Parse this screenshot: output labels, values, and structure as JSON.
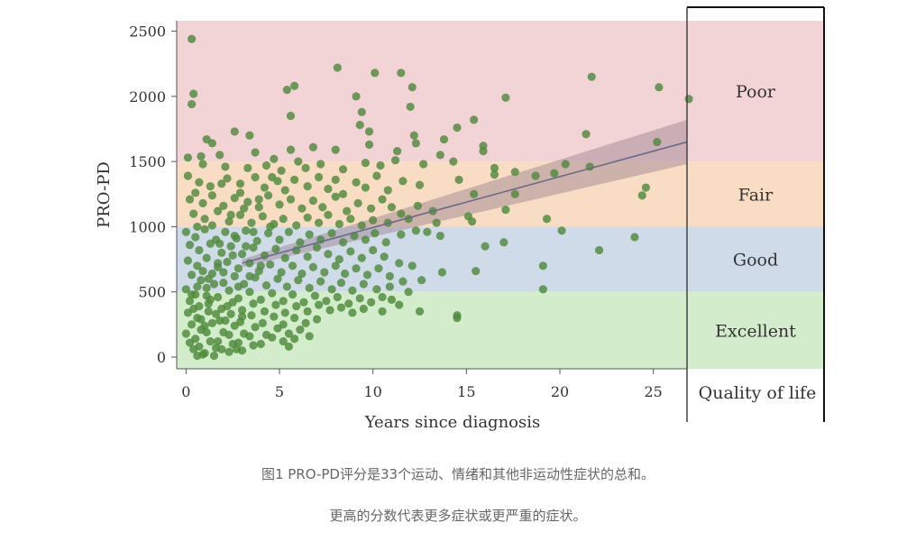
{
  "chart_data": {
    "type": "scatter",
    "title": "",
    "xlabel": "Years since diagnosis",
    "ylabel": "PRO-PD",
    "xlim": [
      -0.5,
      26.8
    ],
    "ylim": [
      -90,
      2580
    ],
    "xticks": [
      0,
      5,
      10,
      15,
      20,
      25
    ],
    "yticks": [
      0,
      500,
      1000,
      1500,
      2000,
      2500
    ],
    "grid": false,
    "bands": [
      {
        "label": "Poor",
        "from": 1500,
        "to": 2580,
        "color": "#f2d3d6"
      },
      {
        "label": "Fair",
        "from": 1000,
        "to": 1500,
        "color": "#f8dcc4"
      },
      {
        "label": "Good",
        "from": 500,
        "to": 1000,
        "color": "#cfdbe9"
      },
      {
        "label": "Excellent",
        "from": -90,
        "to": 500,
        "color": "#d3eccb"
      }
    ],
    "legend_title": "Quality of life",
    "trend_line": {
      "x": [
        3,
        26.8
      ],
      "y": [
        720,
        1650
      ],
      "ci_lower_end": 1480,
      "ci_upper_end": 1820,
      "ci_lower_start": 690,
      "ci_upper_start": 750,
      "color": "#6a6a8a"
    },
    "point_color": "#4f8a3c",
    "points": [
      [
        0.3,
        2440
      ],
      [
        0.4,
        2020
      ],
      [
        0.3,
        1940
      ],
      [
        8.1,
        2220
      ],
      [
        10.1,
        2180
      ],
      [
        11.5,
        2180
      ],
      [
        12.1,
        2070
      ],
      [
        5.4,
        2050
      ],
      [
        5.8,
        2080
      ],
      [
        9.1,
        2000
      ],
      [
        9.4,
        1880
      ],
      [
        12.0,
        1920
      ],
      [
        21.7,
        2150
      ],
      [
        17.1,
        1990
      ],
      [
        25.3,
        2070
      ],
      [
        26.9,
        1980
      ],
      [
        5.6,
        1850
      ],
      [
        9.3,
        1780
      ],
      [
        9.8,
        1730
      ],
      [
        14.5,
        1760
      ],
      [
        15.4,
        1820
      ],
      [
        21.4,
        1710
      ],
      [
        25.2,
        1650
      ],
      [
        1.1,
        1670
      ],
      [
        1.4,
        1640
      ],
      [
        2.6,
        1730
      ],
      [
        3.4,
        1700
      ],
      [
        12.2,
        1700
      ],
      [
        12.3,
        1640
      ],
      [
        13.8,
        1670
      ],
      [
        15.9,
        1620
      ],
      [
        6.8,
        1610
      ],
      [
        8.0,
        1590
      ],
      [
        5.6,
        1590
      ],
      [
        9.8,
        1630
      ],
      [
        0.1,
        1530
      ],
      [
        0.8,
        1540
      ],
      [
        1.8,
        1550
      ],
      [
        3.7,
        1570
      ],
      [
        4.7,
        1520
      ],
      [
        6.0,
        1500
      ],
      [
        11.3,
        1580
      ],
      [
        13.6,
        1550
      ],
      [
        15.9,
        1580
      ],
      [
        20.3,
        1480
      ],
      [
        21.6,
        1460
      ],
      [
        0.9,
        1480
      ],
      [
        2.1,
        1460
      ],
      [
        3.3,
        1450
      ],
      [
        4.3,
        1470
      ],
      [
        5.1,
        1430
      ],
      [
        6.4,
        1450
      ],
      [
        7.2,
        1480
      ],
      [
        8.4,
        1440
      ],
      [
        9.6,
        1490
      ],
      [
        10.4,
        1470
      ],
      [
        11.2,
        1510
      ],
      [
        12.7,
        1480
      ],
      [
        14.3,
        1500
      ],
      [
        16.5,
        1450
      ],
      [
        17.6,
        1420
      ],
      [
        19.7,
        1410
      ],
      [
        0.1,
        1390
      ],
      [
        0.7,
        1340
      ],
      [
        1.3,
        1310
      ],
      [
        2.2,
        1370
      ],
      [
        2.9,
        1330
      ],
      [
        3.7,
        1380
      ],
      [
        4.2,
        1300
      ],
      [
        4.9,
        1350
      ],
      [
        5.3,
        1280
      ],
      [
        5.8,
        1360
      ],
      [
        6.5,
        1310
      ],
      [
        7.1,
        1380
      ],
      [
        7.6,
        1290
      ],
      [
        8.0,
        1360
      ],
      [
        8.4,
        1250
      ],
      [
        9.1,
        1340
      ],
      [
        9.6,
        1300
      ],
      [
        10.2,
        1390
      ],
      [
        10.8,
        1280
      ],
      [
        11.6,
        1350
      ],
      [
        12.5,
        1320
      ],
      [
        14.6,
        1360
      ],
      [
        15.4,
        1250
      ],
      [
        16.5,
        1400
      ],
      [
        17.6,
        1250
      ],
      [
        18.7,
        1390
      ],
      [
        24.6,
        1300
      ],
      [
        24.4,
        1240
      ],
      [
        0.2,
        1210
      ],
      [
        0.9,
        1180
      ],
      [
        1.4,
        1240
      ],
      [
        2.0,
        1160
      ],
      [
        2.6,
        1220
      ],
      [
        3.3,
        1190
      ],
      [
        3.9,
        1150
      ],
      [
        4.4,
        1240
      ],
      [
        5.0,
        1170
      ],
      [
        5.6,
        1210
      ],
      [
        6.2,
        1140
      ],
      [
        6.8,
        1200
      ],
      [
        7.3,
        1150
      ],
      [
        8.0,
        1230
      ],
      [
        8.6,
        1120
      ],
      [
        9.2,
        1180
      ],
      [
        9.9,
        1140
      ],
      [
        10.5,
        1210
      ],
      [
        11.0,
        1150
      ],
      [
        11.5,
        1100
      ],
      [
        12.4,
        1160
      ],
      [
        13.2,
        1120
      ],
      [
        15.1,
        1080
      ],
      [
        17.1,
        1130
      ],
      [
        0.4,
        1100
      ],
      [
        1.0,
        1060
      ],
      [
        1.7,
        1120
      ],
      [
        2.3,
        1040
      ],
      [
        2.9,
        1090
      ],
      [
        3.5,
        1030
      ],
      [
        4.1,
        1080
      ],
      [
        4.7,
        1020
      ],
      [
        5.2,
        1060
      ],
      [
        5.9,
        1010
      ],
      [
        6.5,
        1070
      ],
      [
        7.1,
        1030
      ],
      [
        7.6,
        1090
      ],
      [
        8.2,
        1020
      ],
      [
        8.8,
        1060
      ],
      [
        9.4,
        1010
      ],
      [
        10.0,
        1050
      ],
      [
        10.8,
        1030
      ],
      [
        11.9,
        1060
      ],
      [
        13.4,
        1030
      ],
      [
        15.3,
        1040
      ],
      [
        19.3,
        1060
      ],
      [
        0.0,
        960
      ],
      [
        0.5,
        920
      ],
      [
        1.0,
        980
      ],
      [
        1.6,
        900
      ],
      [
        2.1,
        960
      ],
      [
        2.7,
        910
      ],
      [
        3.2,
        970
      ],
      [
        3.8,
        890
      ],
      [
        4.4,
        950
      ],
      [
        5.0,
        900
      ],
      [
        5.5,
        960
      ],
      [
        6.1,
        880
      ],
      [
        6.6,
        940
      ],
      [
        7.2,
        900
      ],
      [
        7.8,
        950
      ],
      [
        8.4,
        880
      ],
      [
        9.0,
        930
      ],
      [
        9.6,
        900
      ],
      [
        10.1,
        950
      ],
      [
        10.7,
        880
      ],
      [
        11.5,
        940
      ],
      [
        12.3,
        970
      ],
      [
        12.9,
        960
      ],
      [
        13.6,
        930
      ],
      [
        16.0,
        850
      ],
      [
        17.0,
        880
      ],
      [
        20.1,
        970
      ],
      [
        22.1,
        820
      ],
      [
        24.0,
        920
      ],
      [
        0.2,
        860
      ],
      [
        0.7,
        820
      ],
      [
        1.3,
        870
      ],
      [
        1.9,
        800
      ],
      [
        2.4,
        850
      ],
      [
        3.0,
        790
      ],
      [
        3.6,
        840
      ],
      [
        4.2,
        780
      ],
      [
        4.8,
        830
      ],
      [
        5.3,
        760
      ],
      [
        5.9,
        820
      ],
      [
        6.5,
        770
      ],
      [
        7.0,
        840
      ],
      [
        7.6,
        790
      ],
      [
        8.2,
        750
      ],
      [
        8.8,
        810
      ],
      [
        9.4,
        760
      ],
      [
        10.0,
        820
      ],
      [
        10.6,
        770
      ],
      [
        11.4,
        720
      ],
      [
        12.1,
        700
      ],
      [
        0.1,
        740
      ],
      [
        0.6,
        700
      ],
      [
        1.1,
        760
      ],
      [
        1.7,
        690
      ],
      [
        2.2,
        730
      ],
      [
        2.8,
        680
      ],
      [
        3.4,
        720
      ],
      [
        3.9,
        660
      ],
      [
        4.5,
        710
      ],
      [
        5.1,
        650
      ],
      [
        5.7,
        700
      ],
      [
        6.2,
        640
      ],
      [
        6.8,
        690
      ],
      [
        7.4,
        650
      ],
      [
        8.0,
        700
      ],
      [
        8.5,
        640
      ],
      [
        9.1,
        680
      ],
      [
        9.7,
        630
      ],
      [
        10.3,
        680
      ],
      [
        10.9,
        620
      ],
      [
        11.6,
        580
      ],
      [
        13.7,
        650
      ],
      [
        15.5,
        660
      ],
      [
        19.1,
        700
      ],
      [
        0.3,
        630
      ],
      [
        0.8,
        590
      ],
      [
        1.4,
        640
      ],
      [
        2.0,
        570
      ],
      [
        2.6,
        620
      ],
      [
        3.1,
        560
      ],
      [
        3.7,
        610
      ],
      [
        4.3,
        550
      ],
      [
        4.9,
        600
      ],
      [
        5.4,
        540
      ],
      [
        6.0,
        590
      ],
      [
        6.6,
        530
      ],
      [
        7.2,
        580
      ],
      [
        7.8,
        520
      ],
      [
        8.3,
        570
      ],
      [
        8.9,
        510
      ],
      [
        9.5,
        560
      ],
      [
        10.2,
        520
      ],
      [
        10.9,
        540
      ],
      [
        11.9,
        500
      ],
      [
        12.6,
        590
      ],
      [
        19.1,
        520
      ],
      [
        0.0,
        520
      ],
      [
        0.5,
        480
      ],
      [
        1.1,
        530
      ],
      [
        1.7,
        460
      ],
      [
        2.3,
        510
      ],
      [
        2.8,
        450
      ],
      [
        3.4,
        500
      ],
      [
        4.0,
        440
      ],
      [
        4.6,
        490
      ],
      [
        5.2,
        430
      ],
      [
        5.7,
        480
      ],
      [
        6.3,
        420
      ],
      [
        6.9,
        470
      ],
      [
        7.5,
        430
      ],
      [
        8.1,
        460
      ],
      [
        8.7,
        410
      ],
      [
        9.3,
        450
      ],
      [
        9.9,
        420
      ],
      [
        10.5,
        460
      ],
      [
        11.0,
        440
      ],
      [
        11.4,
        400
      ],
      [
        0.2,
        430
      ],
      [
        0.7,
        390
      ],
      [
        1.3,
        440
      ],
      [
        1.9,
        370
      ],
      [
        2.5,
        420
      ],
      [
        3.0,
        360
      ],
      [
        3.6,
        410
      ],
      [
        4.2,
        350
      ],
      [
        4.8,
        400
      ],
      [
        5.3,
        340
      ],
      [
        5.9,
        390
      ],
      [
        6.5,
        350
      ],
      [
        7.1,
        400
      ],
      [
        7.7,
        360
      ],
      [
        8.3,
        380
      ],
      [
        8.9,
        340
      ],
      [
        9.5,
        370
      ],
      [
        10.5,
        350
      ],
      [
        12.5,
        350
      ],
      [
        14.5,
        320
      ],
      [
        14.5,
        300
      ],
      [
        0.1,
        340
      ],
      [
        0.6,
        300
      ],
      [
        1.2,
        350
      ],
      [
        1.8,
        280
      ],
      [
        2.4,
        330
      ],
      [
        2.9,
        270
      ],
      [
        3.5,
        320
      ],
      [
        4.1,
        260
      ],
      [
        4.7,
        310
      ],
      [
        5.2,
        250
      ],
      [
        5.8,
        300
      ],
      [
        6.4,
        260
      ],
      [
        7.0,
        290
      ],
      [
        0.3,
        250
      ],
      [
        0.8,
        210
      ],
      [
        1.4,
        260
      ],
      [
        2.0,
        190
      ],
      [
        2.6,
        240
      ],
      [
        3.1,
        180
      ],
      [
        3.7,
        230
      ],
      [
        4.3,
        170
      ],
      [
        4.9,
        220
      ],
      [
        5.5,
        180
      ],
      [
        6.1,
        210
      ],
      [
        6.6,
        160
      ],
      [
        0.0,
        180
      ],
      [
        0.5,
        140
      ],
      [
        1.1,
        190
      ],
      [
        1.7,
        120
      ],
      [
        2.3,
        170
      ],
      [
        2.8,
        110
      ],
      [
        3.4,
        160
      ],
      [
        4.0,
        100
      ],
      [
        4.6,
        150
      ],
      [
        5.2,
        120
      ],
      [
        5.8,
        140
      ],
      [
        0.2,
        110
      ],
      [
        0.7,
        80
      ],
      [
        1.3,
        120
      ],
      [
        1.9,
        60
      ],
      [
        2.5,
        100
      ],
      [
        3.0,
        50
      ],
      [
        3.6,
        90
      ],
      [
        0.4,
        60
      ],
      [
        1.0,
        30
      ],
      [
        1.6,
        70
      ],
      [
        0.9,
        20
      ],
      [
        2.3,
        40
      ],
      [
        5.5,
        80
      ],
      [
        1.5,
        10
      ],
      [
        0.6,
        10
      ],
      [
        2.7,
        60
      ],
      [
        0.4,
        370
      ],
      [
        1.2,
        410
      ],
      [
        0.8,
        290
      ],
      [
        1.6,
        330
      ],
      [
        1.0,
        240
      ],
      [
        2.1,
        280
      ],
      [
        0.3,
        480
      ],
      [
        1.5,
        560
      ],
      [
        2.0,
        650
      ],
      [
        1.2,
        600
      ],
      [
        0.9,
        660
      ],
      [
        1.7,
        720
      ],
      [
        2.5,
        780
      ],
      [
        3.2,
        850
      ],
      [
        0.6,
        540
      ],
      [
        1.1,
        470
      ],
      [
        2.2,
        390
      ],
      [
        3.0,
        310
      ],
      [
        2.8,
        540
      ],
      [
        3.4,
        620
      ],
      [
        4.0,
        700
      ],
      [
        1.8,
        870
      ],
      [
        2.6,
        930
      ],
      [
        0.6,
        1000
      ],
      [
        1.4,
        1010
      ],
      [
        3.6,
        960
      ],
      [
        4.5,
        1000
      ],
      [
        2.9,
        1260
      ],
      [
        3.9,
        1210
      ],
      [
        4.6,
        1380
      ],
      [
        1.9,
        1330
      ],
      [
        0.5,
        1260
      ],
      [
        2.4,
        1090
      ],
      [
        3.1,
        1140
      ]
    ]
  },
  "caption": {
    "line1": "图1 PRO-PD评分是33个运动、情绪和其他非运动性症状的总和。",
    "line2": "更高的分数代表更多症状或更严重的症状。"
  }
}
